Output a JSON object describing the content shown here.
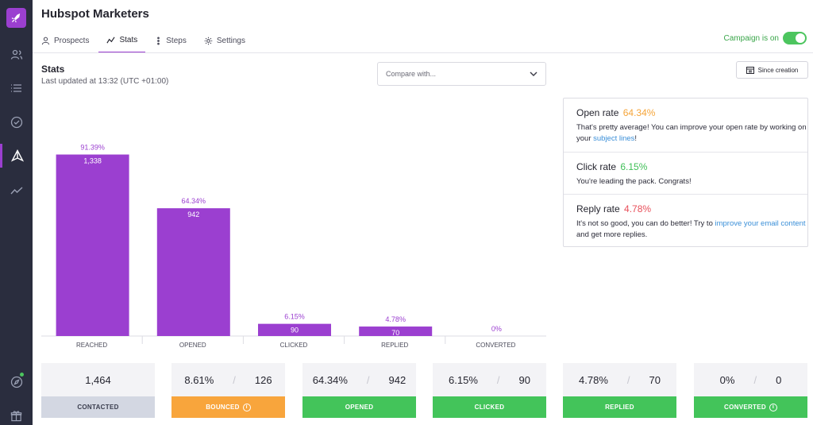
{
  "app": {
    "title": "Hubspot Marketers"
  },
  "sidebar": {
    "items": [
      {
        "icon": "users-icon"
      },
      {
        "icon": "list-icon"
      },
      {
        "icon": "check-circle-icon"
      },
      {
        "icon": "send-icon",
        "active": true
      },
      {
        "icon": "trend-icon"
      }
    ],
    "bottom_items": [
      {
        "icon": "compass-icon",
        "badge": true
      },
      {
        "icon": "gift-icon"
      }
    ]
  },
  "tabs": [
    {
      "label": "Prospects",
      "icon": "prospects-icon"
    },
    {
      "label": "Stats",
      "icon": "stats-icon",
      "active": true
    },
    {
      "label": "Steps",
      "icon": "steps-icon"
    },
    {
      "label": "Settings",
      "icon": "gear-icon"
    }
  ],
  "campaign": {
    "label": "Campaign is on",
    "on": true
  },
  "stats": {
    "title": "Stats",
    "updated": "Last updated at 13:32 (UTC +01:00)",
    "compare_placeholder": "Compare with...",
    "since_label": "Since creation"
  },
  "chart_data": {
    "type": "bar",
    "categories": [
      "REACHED",
      "OPENED",
      "CLICKED",
      "REPLIED",
      "CONVERTED"
    ],
    "values": [
      1338,
      942,
      90,
      70,
      0
    ],
    "value_labels": [
      "1,338",
      "942",
      "90",
      "70",
      ""
    ],
    "percent_labels": [
      "91.39%",
      "64.34%",
      "6.15%",
      "4.78%",
      "0%"
    ],
    "ylim": [
      0,
      1464
    ],
    "color": "#9b3fd0",
    "grid": false
  },
  "rates": {
    "open": {
      "title": "Open rate",
      "value": "64.34%",
      "color": "#f5a53a",
      "text_before": "That's pretty average! You can improve your open rate by working on your ",
      "link": "subject lines",
      "text_after": "!"
    },
    "click": {
      "title": "Click rate",
      "value": "6.15%",
      "color": "#3fbf57",
      "text": "You're leading the pack. Congrats!"
    },
    "reply": {
      "title": "Reply rate",
      "value": "4.78%",
      "color": "#e84f5a",
      "text_before": "It's not so good, you can do better! Try to ",
      "link": "improve your email content",
      "text_after": " and get more replies."
    }
  },
  "cards": [
    {
      "value": "1,464",
      "label": "CONTACTED",
      "color": "#d3d7e2",
      "label_color": "#3a3d4e"
    },
    {
      "percent": "8.61%",
      "value": "126",
      "label": "BOUNCED",
      "color": "#f8a53c",
      "info": true
    },
    {
      "percent": "64.34%",
      "value": "942",
      "label": "OPENED",
      "color": "#43c45a"
    },
    {
      "percent": "6.15%",
      "value": "90",
      "label": "CLICKED",
      "color": "#43c45a"
    },
    {
      "percent": "4.78%",
      "value": "70",
      "label": "REPLIED",
      "color": "#43c45a"
    },
    {
      "percent": "0%",
      "value": "0",
      "label": "CONVERTED",
      "color": "#43c45a",
      "info": true
    }
  ],
  "colors": {
    "accent": "#9b3fd0",
    "sidebar": "#2a2d3e",
    "success": "#4cc55e"
  }
}
